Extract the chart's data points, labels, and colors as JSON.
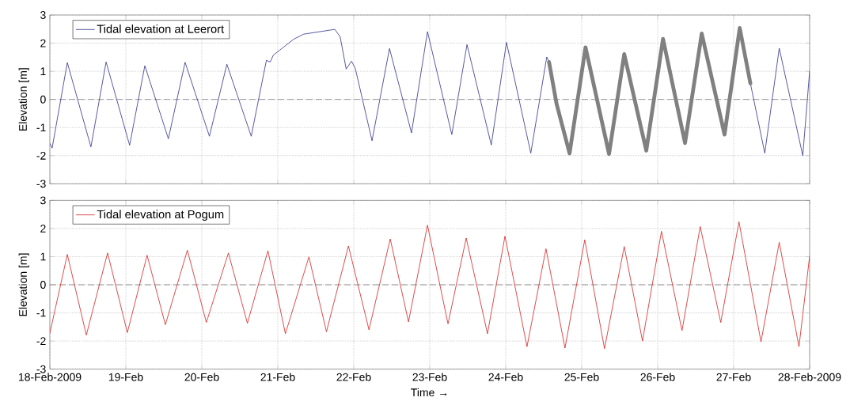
{
  "chart_data": [
    {
      "type": "line",
      "ylabel": "Elevation [m]",
      "xlim": [
        "2009-02-18",
        "2009-02-28"
      ],
      "ylim": [
        -3,
        3
      ],
      "yticks": [
        -3,
        -2,
        -1,
        0,
        1,
        2,
        3
      ],
      "grid": true,
      "legend": "top left",
      "tick_labels": "y",
      "line_style": "solid",
      "ref_lines": [
        {
          "axis": "y",
          "value": 0,
          "color": "#808080",
          "line_style": "dashed"
        }
      ],
      "series": [
        {
          "name": "Tidal elevation at Leerort",
          "color": "#2e2e8c",
          "x": [
            "2009-02-18T00:00",
            "2009-02-18T00:43",
            "2009-02-18T05:31",
            "2009-02-18T12:58",
            "2009-02-18T17:46",
            "2009-02-19T01:12",
            "2009-02-19T06:00",
            "2009-02-19T13:26",
            "2009-02-19T18:43",
            "2009-02-20T02:24",
            "2009-02-20T07:55",
            "2009-02-20T15:36",
            "2009-02-20T20:24",
            "2009-02-20T21:36",
            "2009-02-20T22:34",
            "2009-02-21T05:02",
            "2009-02-21T08:10",
            "2009-02-21T18:00",
            "2009-02-21T19:41",
            "2009-02-21T21:36",
            "2009-02-21T23:17",
            "2009-02-22T00:29",
            "2009-02-22T05:46",
            "2009-02-22T11:17",
            "2009-02-22T18:14",
            "2009-02-22T23:17",
            "2009-02-23T06:58",
            "2009-02-23T11:46",
            "2009-02-23T19:26",
            "2009-02-24T00:14",
            "2009-02-24T07:55",
            "2009-02-24T12:58",
            "2009-02-24T13:41",
            "2009-02-26T00:00",
            "2009-02-27T05:17",
            "2009-02-27T09:50",
            "2009-02-27T14:24",
            "2009-02-27T21:50",
            "2009-02-28T00:00"
          ],
          "values": [
            -1.57,
            -1.73,
            1.31,
            -1.69,
            1.33,
            -1.63,
            1.2,
            -1.4,
            1.32,
            -1.31,
            1.25,
            -1.31,
            1.39,
            1.33,
            1.57,
            2.14,
            2.32,
            2.49,
            2.23,
            1.08,
            1.36,
            1.1,
            -1.47,
            1.81,
            -1.19,
            2.41,
            -1.25,
            1.95,
            -1.62,
            2.03,
            -1.91,
            1.51,
            1.33,
            null,
            0.57,
            -1.91,
            1.82,
            -2.0,
            1.0
          ]
        },
        {
          "color": "#808080",
          "x": [
            "2009-02-24T13:41",
            "2009-02-24T16:05",
            "2009-02-24T20:10",
            "2009-02-25T01:12",
            "2009-02-25T08:38",
            "2009-02-25T13:26",
            "2009-02-25T20:24",
            "2009-02-26T01:41",
            "2009-02-26T08:38",
            "2009-02-26T13:55",
            "2009-02-26T21:07",
            "2009-02-27T01:55",
            "2009-02-27T05:17"
          ],
          "values": [
            1.33,
            -0.17,
            -1.92,
            1.85,
            -1.94,
            1.61,
            -1.82,
            2.15,
            -1.55,
            2.34,
            -1.25,
            2.54,
            0.57
          ]
        }
      ]
    },
    {
      "type": "line",
      "ylabel": "Elevation [m]",
      "xlabel": "Time →",
      "xlim": [
        "2009-02-18",
        "2009-02-28"
      ],
      "xticks": [
        {
          "value": "2009-02-18",
          "label": "18-Feb-2009"
        },
        {
          "value": "2009-02-19",
          "label": "19-Feb"
        },
        {
          "value": "2009-02-20",
          "label": "20-Feb"
        },
        {
          "value": "2009-02-21",
          "label": "21-Feb"
        },
        {
          "value": "2009-02-22",
          "label": "22-Feb"
        },
        {
          "value": "2009-02-23",
          "label": "23-Feb"
        },
        {
          "value": "2009-02-24",
          "label": "24-Feb"
        },
        {
          "value": "2009-02-25",
          "label": "25-Feb"
        },
        {
          "value": "2009-02-26",
          "label": "26-Feb"
        },
        {
          "value": "2009-02-27",
          "label": "27-Feb"
        },
        {
          "value": "2009-02-28",
          "label": "28-Feb-2009"
        }
      ],
      "ylim": [
        -3,
        3
      ],
      "yticks": [
        -3,
        -2,
        -1,
        0,
        1,
        2,
        3
      ],
      "grid": true,
      "legend": "top left",
      "line_style": "solid",
      "ref_lines": [
        {
          "axis": "y",
          "value": 0,
          "color": "#808080",
          "line_style": "dashed"
        }
      ],
      "series": [
        {
          "name": "Tidal elevation at Pogum",
          "color": "#d42020",
          "x": [
            "2009-02-18T00:00",
            "2009-02-18T05:31",
            "2009-02-18T11:31",
            "2009-02-18T18:14",
            "2009-02-19T00:29",
            "2009-02-19T06:43",
            "2009-02-19T12:29",
            "2009-02-19T19:26",
            "2009-02-20T01:26",
            "2009-02-20T08:24",
            "2009-02-20T14:24",
            "2009-02-20T20:53",
            "2009-02-21T02:24",
            "2009-02-21T09:50",
            "2009-02-21T15:22",
            "2009-02-21T22:19",
            "2009-02-22T04:48",
            "2009-02-22T11:31",
            "2009-02-22T17:17",
            "2009-02-22T23:17",
            "2009-02-23T05:46",
            "2009-02-23T11:31",
            "2009-02-23T18:14",
            "2009-02-23T23:46",
            "2009-02-24T06:43",
            "2009-02-24T12:43",
            "2009-02-24T18:43",
            "2009-02-25T00:58",
            "2009-02-25T07:12",
            "2009-02-25T13:26",
            "2009-02-25T19:12",
            "2009-02-26T01:12",
            "2009-02-26T07:41",
            "2009-02-26T13:26",
            "2009-02-26T19:55",
            "2009-02-27T01:41",
            "2009-02-27T08:38",
            "2009-02-27T14:24",
            "2009-02-27T20:38",
            "2009-02-28T00:00"
          ],
          "values": [
            -1.72,
            1.08,
            -1.79,
            1.13,
            -1.7,
            1.05,
            -1.42,
            1.23,
            -1.34,
            1.13,
            -1.37,
            1.21,
            -1.74,
            0.99,
            -1.67,
            1.38,
            -1.6,
            1.63,
            -1.32,
            2.12,
            -1.39,
            1.66,
            -1.74,
            1.73,
            -2.2,
            1.28,
            -2.25,
            1.6,
            -2.27,
            1.36,
            -2.0,
            1.9,
            -1.63,
            2.07,
            -1.34,
            2.24,
            -2.03,
            1.51,
            -2.2,
            1.02
          ]
        }
      ]
    }
  ]
}
